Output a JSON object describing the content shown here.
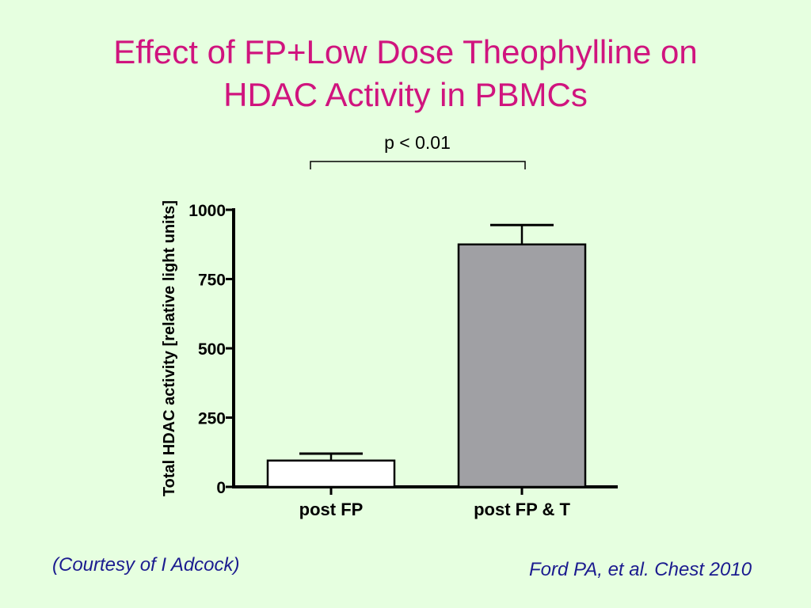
{
  "slide": {
    "title_line1": "Effect of FP+Low Dose Theophylline on",
    "title_line2": "HDAC Activity in PBMCs",
    "courtesy": "(Courtesy of I Adcock)",
    "citation": "Ford PA, et al. Chest 2010"
  },
  "colors": {
    "background": "#e6ffe0",
    "title": "#d0147e",
    "credit_text": "#1b1b8f",
    "bar_post_fp": "#ffffff",
    "bar_post_fp_t": "#a0a0a4"
  },
  "chart_data": {
    "type": "bar",
    "categories": [
      "post FP",
      "post FP & T"
    ],
    "values": [
      95,
      875
    ],
    "errors": [
      25,
      70
    ],
    "title": "",
    "xlabel": "",
    "ylabel": "Total HDAC activity [relative light units]",
    "ylim": [
      0,
      1000
    ],
    "yticks": [
      0,
      250,
      500,
      750,
      1000
    ],
    "ytick_labels": [
      "0",
      "250",
      "500",
      "750",
      "1000"
    ],
    "grid": false,
    "annotation": "p < 0.01"
  }
}
